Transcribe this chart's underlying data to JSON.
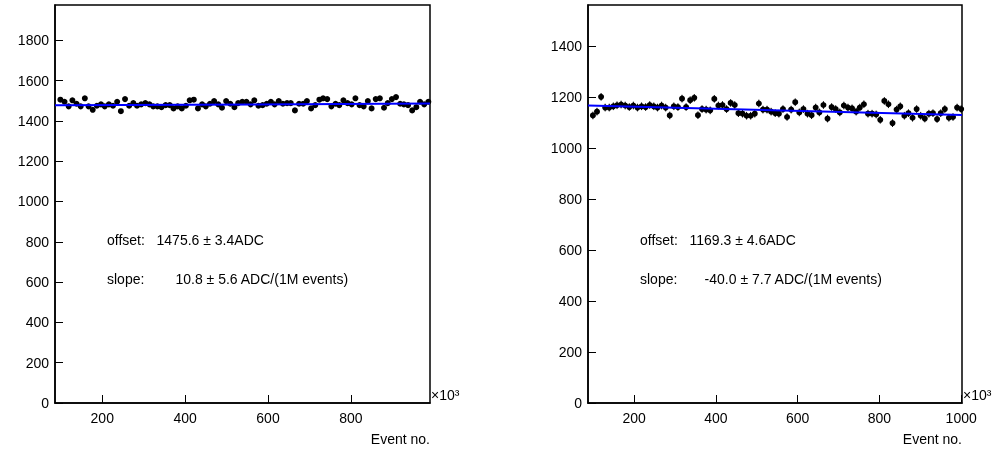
{
  "chart_data": [
    {
      "type": "scatter",
      "xlabel": "Event no.",
      "xlim": [
        86,
        991
      ],
      "ylim": [
        0,
        1975
      ],
      "xticks": [
        200,
        400,
        600,
        800
      ],
      "yticks": [
        0,
        200,
        400,
        600,
        800,
        1000,
        1200,
        1400,
        1600,
        1800
      ],
      "marker": "circle",
      "annotations": [
        "offset:   1475.6 ± 3.4ADC",
        "slope:        10.8 ± 5.6 ADC/(1M events)",
        "×10³"
      ],
      "series": [
        {
          "color": "#000000",
          "x": [
            99,
            109,
            119,
            128,
            138,
            148,
            158,
            167,
            177,
            187,
            197,
            206,
            216,
            226,
            236,
            245,
            255,
            265,
            275,
            284,
            294,
            304,
            314,
            323,
            333,
            343,
            353,
            363,
            372,
            382,
            392,
            402,
            411,
            421,
            431,
            441,
            450,
            460,
            470,
            480,
            489,
            499,
            509,
            519,
            528,
            538,
            548,
            558,
            567,
            577,
            587,
            597,
            607,
            616,
            626,
            636,
            646,
            655,
            665,
            675,
            685,
            694,
            704,
            714,
            724,
            733,
            743,
            753,
            763,
            772,
            782,
            792,
            802,
            811,
            821,
            831,
            841,
            850,
            860,
            870,
            880,
            889,
            899,
            909,
            919,
            928,
            938,
            948,
            958,
            967,
            977,
            987
          ],
          "values": [
            1505,
            1495,
            1472,
            1502,
            1485,
            1472,
            1512,
            1472,
            1455,
            1475,
            1482,
            1472,
            1482,
            1475,
            1495,
            1448,
            1508,
            1475,
            1488,
            1475,
            1482,
            1488,
            1482,
            1472,
            1472,
            1468,
            1478,
            1478,
            1462,
            1472,
            1462,
            1475,
            1502,
            1505,
            1462,
            1482,
            1472,
            1485,
            1498,
            1482,
            1465,
            1498,
            1485,
            1468,
            1488,
            1495,
            1495,
            1482,
            1502,
            1475,
            1478,
            1485,
            1495,
            1482,
            1498,
            1485,
            1488,
            1488,
            1452,
            1485,
            1485,
            1498,
            1462,
            1478,
            1505,
            1512,
            1508,
            1472,
            1485,
            1478,
            1502,
            1488,
            1482,
            1512,
            1478,
            1472,
            1498,
            1462,
            1508,
            1512,
            1465,
            1488,
            1508,
            1518,
            1485,
            1482,
            1478,
            1452,
            1468,
            1495,
            1482,
            1495
          ]
        },
        {
          "type": "line",
          "color": "#0000ff",
          "marker": "none",
          "x": [
            86,
            991
          ],
          "values": [
            1477,
            1486
          ]
        }
      ]
    },
    {
      "type": "scatter",
      "xlabel": "Event no.",
      "xlim": [
        87,
        1002
      ],
      "ylim": [
        0,
        1560
      ],
      "xticks": [
        200,
        400,
        600,
        800,
        1000
      ],
      "yticks": [
        0,
        200,
        400,
        600,
        800,
        1000,
        1200,
        1400
      ],
      "marker": "circle",
      "annotations": [
        "offset:   1169.3 ± 4.6ADC",
        "slope:       -40.0 ± 7.7 ADC/(1M events)",
        "×10³"
      ],
      "series": [
        {
          "color": "#000000",
          "x": [
            99,
            109,
            119,
            129,
            139,
            149,
            158,
            168,
            178,
            188,
            198,
            208,
            218,
            228,
            238,
            248,
            257,
            267,
            277,
            287,
            297,
            307,
            317,
            327,
            337,
            347,
            356,
            366,
            376,
            386,
            396,
            406,
            416,
            426,
            436,
            446,
            455,
            465,
            475,
            485,
            495,
            505,
            515,
            525,
            535,
            545,
            554,
            564,
            574,
            584,
            594,
            604,
            614,
            624,
            634,
            644,
            653,
            663,
            673,
            683,
            693,
            703,
            713,
            723,
            733,
            743,
            752,
            762,
            772,
            782,
            792,
            802,
            812,
            822,
            832,
            842,
            851,
            861,
            871,
            881,
            891,
            901,
            911,
            921,
            931,
            941,
            950,
            960,
            970,
            980,
            990,
            1000
          ],
          "values": [
            1127,
            1142,
            1200,
            1158,
            1158,
            1163,
            1167,
            1170,
            1166,
            1160,
            1166,
            1158,
            1163,
            1160,
            1168,
            1163,
            1158,
            1166,
            1158,
            1127,
            1163,
            1160,
            1193,
            1160,
            1187,
            1196,
            1128,
            1152,
            1150,
            1147,
            1192,
            1166,
            1168,
            1152,
            1176,
            1168,
            1136,
            1134,
            1126,
            1126,
            1134,
            1174,
            1150,
            1150,
            1142,
            1136,
            1134,
            1152,
            1121,
            1150,
            1179,
            1139,
            1152,
            1134,
            1128,
            1158,
            1139,
            1168,
            1115,
            1160,
            1152,
            1139,
            1166,
            1158,
            1155,
            1142,
            1158,
            1171,
            1134,
            1134,
            1131,
            1110,
            1184,
            1171,
            1097,
            1150,
            1163,
            1126,
            1136,
            1118,
            1152,
            1126,
            1115,
            1134,
            1136,
            1113,
            1136,
            1152,
            1118,
            1121,
            1158,
            1152
          ],
          "errors": [
            15,
            15,
            15,
            15,
            15,
            15,
            15,
            15,
            15,
            15,
            15,
            15,
            15,
            15,
            15,
            15,
            15,
            15,
            15,
            15,
            15,
            15,
            15,
            15,
            15,
            15,
            15,
            15,
            15,
            15,
            15,
            15,
            15,
            15,
            15,
            15,
            15,
            15,
            15,
            15,
            15,
            15,
            15,
            15,
            15,
            15,
            15,
            15,
            15,
            15,
            15,
            15,
            15,
            15,
            15,
            15,
            15,
            15,
            15,
            15,
            15,
            15,
            15,
            15,
            15,
            15,
            15,
            15,
            15,
            15,
            15,
            15,
            15,
            15,
            15,
            15,
            15,
            15,
            15,
            15,
            15,
            15,
            15,
            15,
            15,
            15,
            15,
            15,
            15,
            15,
            15,
            15
          ]
        },
        {
          "type": "line",
          "color": "#0000ff",
          "marker": "none",
          "x": [
            87,
            1002
          ],
          "values": [
            1166,
            1129
          ]
        }
      ]
    }
  ]
}
